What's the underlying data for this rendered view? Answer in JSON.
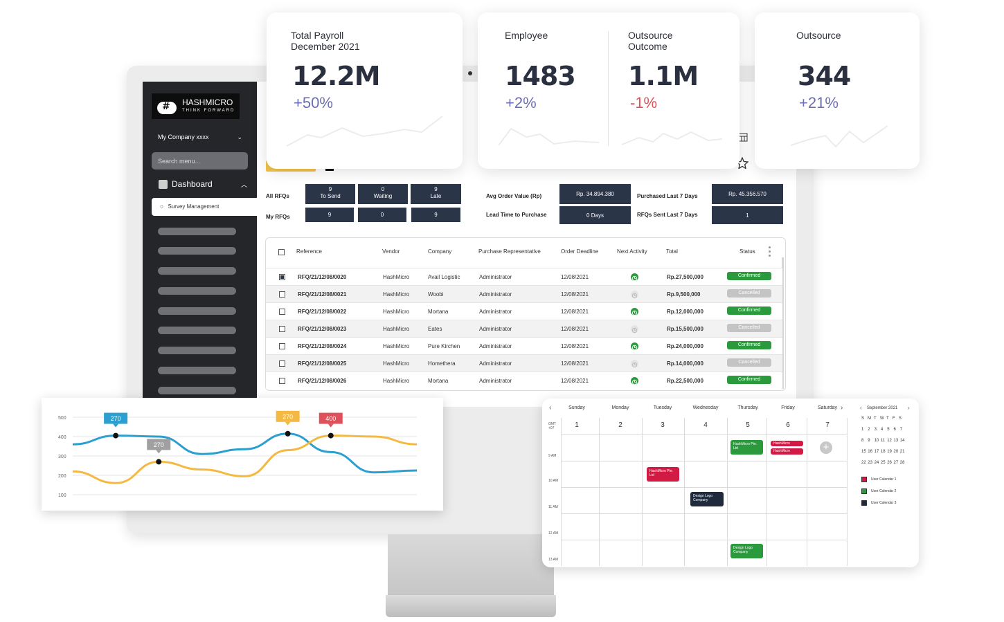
{
  "sidebar": {
    "logo_text": "HASHMICRO",
    "logo_tagline": "THINK FORWARD",
    "company": "My Company xxxx",
    "search_placeholder": "Search menu...",
    "dashboard_label": "Dashboard",
    "active_item": "Survey Management"
  },
  "kpis": [
    {
      "label": "Total Payroll December 2021",
      "value": "12.2M",
      "change": "+50%",
      "trend": "up"
    },
    {
      "label": "Employee",
      "value": "1483",
      "change": "+2%",
      "trend": "up"
    },
    {
      "label": "Outsource Outcome",
      "value": "1.1M",
      "change": "-1%",
      "trend": "down"
    },
    {
      "label": "Outsource",
      "value": "344",
      "change": "+21%",
      "trend": "up"
    }
  ],
  "rfq_summary": {
    "all_rfqs_label": "All RFQs",
    "my_rfqs_label": "My RFQs",
    "boxes": [
      {
        "count": "9",
        "label": "To Send",
        "mine": "9"
      },
      {
        "count": "0",
        "label": "Waiting",
        "mine": "0"
      },
      {
        "count": "9",
        "label": "Late",
        "mine": "9"
      }
    ],
    "avg_order_label": "Avg Order Value (Rp)",
    "avg_order_value": "Rp. 34.894.380",
    "lead_time_label": "Lead Time to Purchase",
    "lead_time_value": "0 Days",
    "purchased_label": "Purchased Last 7 Days",
    "purchased_value": "Rp. 45.356.570",
    "rfqs_sent_label": "RFQs Sent Last 7 Days",
    "rfqs_sent_value": "1"
  },
  "table": {
    "headers": [
      "Reference",
      "Vendor",
      "Company",
      "Purchase Representative",
      "Order Deadline",
      "Next Activity",
      "Total",
      "Status"
    ],
    "rows": [
      {
        "ref": "RFQ/21/12/08/0020",
        "vendor": "HashMicro",
        "company": "Avail Logistic",
        "rep": "Administrator",
        "deadline": "12/08/2021",
        "total": "Rp.27,500,000",
        "status": "Confirmed",
        "checked": true
      },
      {
        "ref": "RFQ/21/12/08/0021",
        "vendor": "HashMicro",
        "company": "Woobi",
        "rep": "Administrator",
        "deadline": "12/08/2021",
        "total": "Rp.9,500,000",
        "status": "Cancelled",
        "checked": false
      },
      {
        "ref": "RFQ/21/12/08/0022",
        "vendor": "HashMicro",
        "company": "Mortana",
        "rep": "Administrator",
        "deadline": "12/08/2021",
        "total": "Rp.12,000,000",
        "status": "Confirmed",
        "checked": false
      },
      {
        "ref": "RFQ/21/12/08/0023",
        "vendor": "HashMicro",
        "company": "Eates",
        "rep": "Administrator",
        "deadline": "12/08/2021",
        "total": "Rp.15,500,000",
        "status": "Cancelled",
        "checked": false
      },
      {
        "ref": "RFQ/21/12/08/0024",
        "vendor": "HashMicro",
        "company": "Pure Kirchen",
        "rep": "Administrator",
        "deadline": "12/08/2021",
        "total": "Rp.24,000,000",
        "status": "Confirmed",
        "checked": false
      },
      {
        "ref": "RFQ/21/12/08/0025",
        "vendor": "HashMicro",
        "company": "Homethera",
        "rep": "Administrator",
        "deadline": "12/08/2021",
        "total": "Rp.14,000,000",
        "status": "Cancelled",
        "checked": false
      },
      {
        "ref": "RFQ/21/12/08/0026",
        "vendor": "HashMicro",
        "company": "Mortana",
        "rep": "Administrator",
        "deadline": "12/08/2021",
        "total": "Rp.22,500,000",
        "status": "Confirmed",
        "checked": false
      }
    ]
  },
  "chart_data": {
    "type": "line",
    "ylim": [
      100,
      500
    ],
    "yticks": [
      "500",
      "400",
      "300",
      "200",
      "100"
    ],
    "series": [
      {
        "color": "#2a9fd0",
        "values": [
          360,
          405,
          400,
          310,
          335,
          415,
          320,
          215,
          225
        ]
      },
      {
        "color": "#f4b942",
        "values": [
          220,
          160,
          270,
          230,
          195,
          330,
          405,
          400,
          360
        ]
      }
    ],
    "annotations": [
      {
        "label": "270",
        "color": "#2a9fd0"
      },
      {
        "label": "270",
        "color": "#a0a0a0"
      },
      {
        "label": "270",
        "color": "#f4b942"
      },
      {
        "label": "400",
        "color": "#e0505a"
      }
    ]
  },
  "calendar": {
    "days": [
      "Sunday",
      "Monday",
      "Tuesday",
      "Wednesday",
      "Thursday",
      "Friday",
      "Saturday"
    ],
    "dates": [
      "1",
      "2",
      "3",
      "4",
      "5",
      "6",
      "7"
    ],
    "tz": "GMT +07",
    "times": [
      "9 AM",
      "10 AM",
      "11 AM",
      "12 AM",
      "13 AM"
    ],
    "events": [
      {
        "label": "HashMicro Pte. Ltd",
        "color": "#2a9a3c"
      },
      {
        "label": "HashMicro",
        "color": "#d11a44"
      },
      {
        "label": "HashMicro",
        "color": "#d11a44"
      },
      {
        "label": "HashMicro Pte. Ltd",
        "color": "#d11a44"
      },
      {
        "label": "Design Logo Company",
        "color": "#1f2a3c"
      },
      {
        "label": "Design Logo Company",
        "color": "#2a9a3c"
      }
    ],
    "mini": {
      "month": "September 2021",
      "weekdays": [
        "S",
        "M",
        "T",
        "W",
        "T",
        "F",
        "S"
      ],
      "weeks": [
        [
          "1",
          "2",
          "3",
          "4",
          "5",
          "6",
          "7"
        ],
        [
          "8",
          "9",
          "10",
          "11",
          "12",
          "13",
          "14"
        ],
        [
          "15",
          "16",
          "17",
          "18",
          "19",
          "20",
          "21"
        ],
        [
          "22",
          "23",
          "24",
          "25",
          "26",
          "27",
          "28"
        ]
      ],
      "legend": [
        {
          "label": "User Calendar 1",
          "color": "#d11a44"
        },
        {
          "label": "User Calendar 2",
          "color": "#2a9a3c"
        },
        {
          "label": "User Calendar 3",
          "color": "#1f2a3c"
        }
      ]
    }
  },
  "colors": {
    "accent": "#2b3548",
    "positive": "#6c6fb5",
    "negative": "#e0505a",
    "confirmed": "#2a9a3c",
    "cancelled": "#c4c4c4"
  },
  "icons": [
    "chevron-down-icon",
    "chevron-up-icon",
    "clock-icon",
    "kebab-icon",
    "calendar-grid-icon",
    "star-icon",
    "plus-icon",
    "chevron-left-icon",
    "chevron-right-icon"
  ]
}
